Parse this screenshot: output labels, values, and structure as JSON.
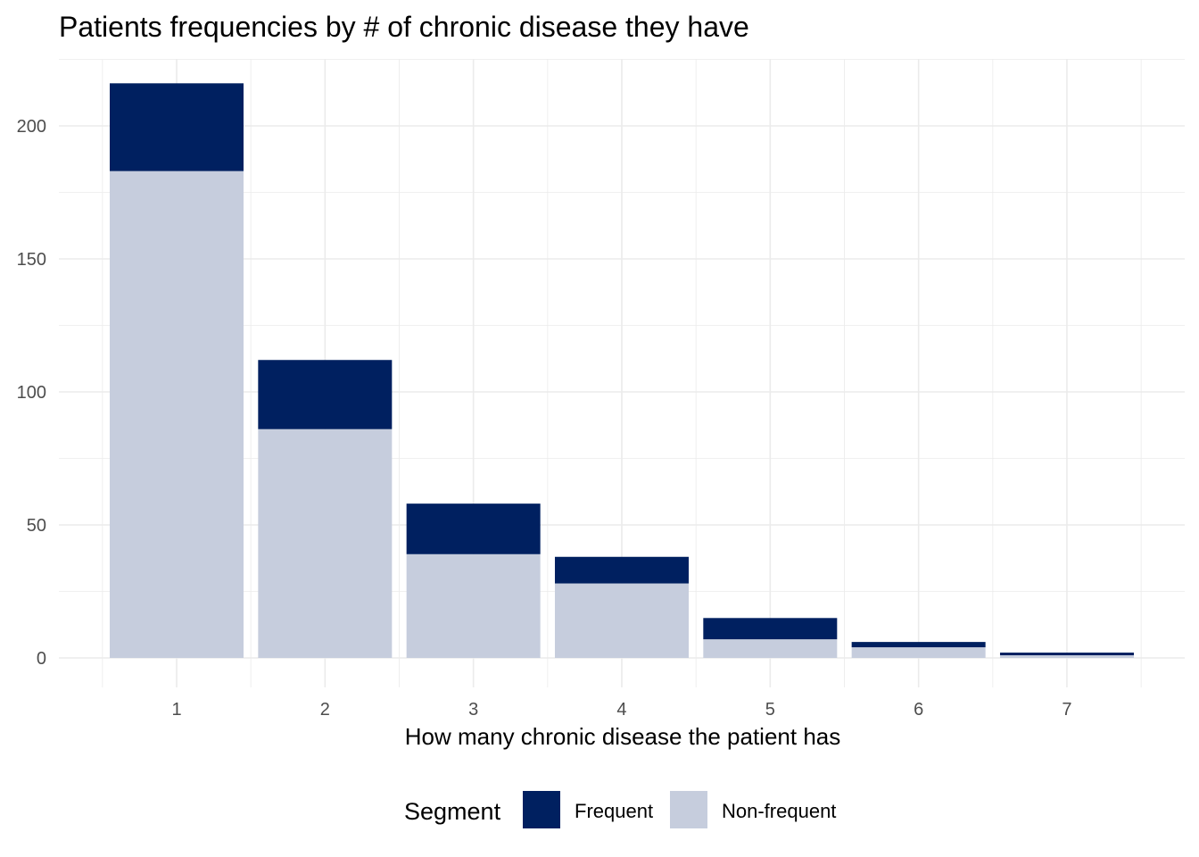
{
  "chart_data": {
    "type": "bar",
    "stacked": true,
    "title": "Patients frequencies by # of chronic disease they have",
    "xlabel": "How many chronic disease the patient has",
    "ylabel": "",
    "categories": [
      "1",
      "2",
      "3",
      "4",
      "5",
      "6",
      "7"
    ],
    "series": [
      {
        "name": "Non-frequent",
        "color": "#c6cddd",
        "values": [
          183,
          86,
          39,
          28,
          7,
          4,
          1
        ]
      },
      {
        "name": "Frequent",
        "color": "#002060",
        "values": [
          33,
          26,
          19,
          10,
          8,
          2,
          1
        ]
      }
    ],
    "ylim": [
      0,
      225
    ],
    "yticks": [
      0,
      50,
      100,
      150,
      200
    ],
    "grid": true,
    "legend": {
      "title": "Segment",
      "position": "bottom",
      "items": [
        "Frequent",
        "Non-frequent"
      ]
    }
  }
}
